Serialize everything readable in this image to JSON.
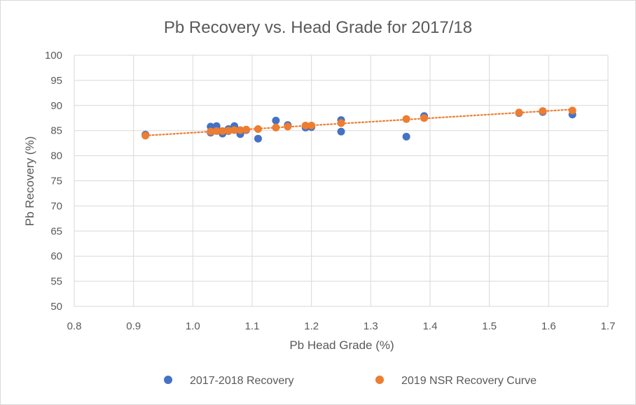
{
  "chart_data": {
    "type": "scatter",
    "title": "Pb Recovery vs. Head Grade for 2017/18",
    "xlabel": "Pb Head Grade (%)",
    "ylabel": "Pb Recovery (%)",
    "xlim": [
      0.8,
      1.7
    ],
    "ylim": [
      50,
      100
    ],
    "xticks": [
      "0.8",
      "0.9",
      "1.0",
      "1.1",
      "1.2",
      "1.3",
      "1.4",
      "1.5",
      "1.6",
      "1.7"
    ],
    "yticks": [
      "50",
      "55",
      "60",
      "65",
      "70",
      "75",
      "80",
      "85",
      "90",
      "95",
      "100"
    ],
    "grid": "vertical-and-horizontal",
    "legend_position": "bottom",
    "series": [
      {
        "name": "2017-2018 Recovery",
        "color": "#4472C4",
        "points": [
          [
            0.92,
            84.2
          ],
          [
            1.03,
            85.8
          ],
          [
            1.03,
            84.6
          ],
          [
            1.04,
            85.9
          ],
          [
            1.04,
            85.3
          ],
          [
            1.05,
            84.4
          ],
          [
            1.06,
            84.9
          ],
          [
            1.06,
            85.3
          ],
          [
            1.07,
            85.9
          ],
          [
            1.07,
            85.2
          ],
          [
            1.08,
            84.3
          ],
          [
            1.09,
            85.1
          ],
          [
            1.11,
            83.4
          ],
          [
            1.14,
            87.0
          ],
          [
            1.16,
            86.1
          ],
          [
            1.19,
            85.6
          ],
          [
            1.2,
            85.7
          ],
          [
            1.25,
            87.1
          ],
          [
            1.25,
            84.8
          ],
          [
            1.36,
            83.8
          ],
          [
            1.39,
            87.9
          ],
          [
            1.55,
            88.5
          ],
          [
            1.59,
            88.7
          ],
          [
            1.64,
            88.2
          ]
        ]
      },
      {
        "name": "2019 NSR Recovery Curve",
        "color": "#ED7D31",
        "trendline": true,
        "points": [
          [
            0.92,
            84.0
          ],
          [
            1.03,
            84.8
          ],
          [
            1.04,
            84.9
          ],
          [
            1.05,
            84.9
          ],
          [
            1.06,
            85.0
          ],
          [
            1.07,
            85.1
          ],
          [
            1.08,
            85.1
          ],
          [
            1.09,
            85.2
          ],
          [
            1.11,
            85.3
          ],
          [
            1.14,
            85.6
          ],
          [
            1.16,
            85.8
          ],
          [
            1.19,
            86.0
          ],
          [
            1.2,
            86.0
          ],
          [
            1.25,
            86.5
          ],
          [
            1.36,
            87.3
          ],
          [
            1.39,
            87.5
          ],
          [
            1.55,
            88.6
          ],
          [
            1.59,
            88.9
          ],
          [
            1.64,
            89.0
          ]
        ]
      }
    ]
  }
}
